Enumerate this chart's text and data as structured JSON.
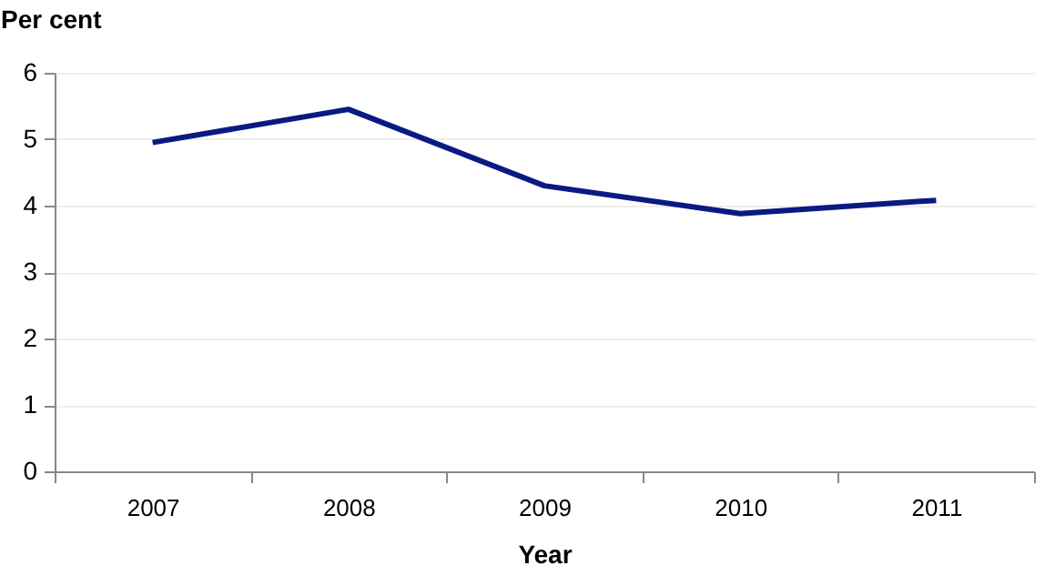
{
  "chart_data": {
    "type": "line",
    "xlabel": "Year",
    "ylabel": "Per cent",
    "categories": [
      "2007",
      "2008",
      "2009",
      "2010",
      "2011"
    ],
    "series": [
      {
        "color": "#0a1a82",
        "values": [
          4.95,
          5.45,
          4.3,
          3.88,
          4.08
        ]
      }
    ],
    "ylim": [
      0,
      6
    ],
    "yticks": [
      0,
      1,
      2,
      3,
      4,
      5,
      6
    ],
    "grid": "y",
    "marker": "none",
    "line_style": "solid"
  }
}
